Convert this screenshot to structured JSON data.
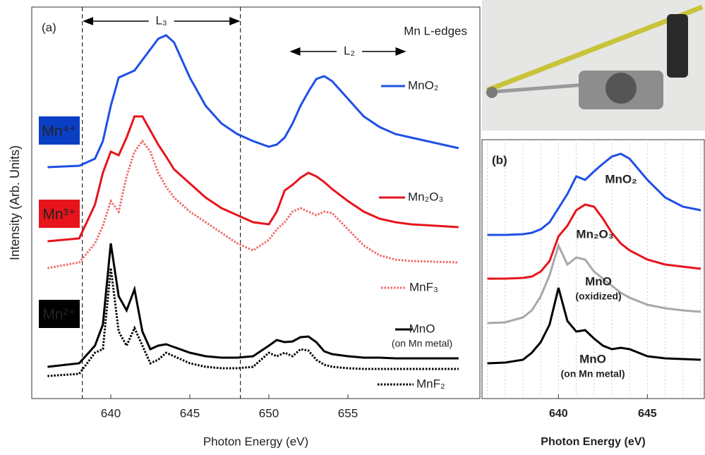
{
  "chart_data": [
    {
      "type": "line",
      "panel_label": "(a)",
      "annotation": "Mn L-edges",
      "edge_labels": [
        "L₃",
        "L₂"
      ],
      "x_label": "Photon Energy (eV)",
      "y_label": "Intensity (Arb. Units)",
      "xlim": [
        635,
        663.35
      ],
      "ylim": [
        0,
        555
      ],
      "xticks": [
        640,
        645,
        650,
        655
      ],
      "vlines": [
        638.2,
        648.2
      ],
      "state_labels": [
        {
          "text": "Mn⁴⁺",
          "color": "#0a3fc4"
        },
        {
          "text": "Mn³⁺",
          "color": "#e8141c"
        },
        {
          "text": "Mn²⁺",
          "color": "#000000"
        }
      ],
      "x": [
        636,
        638,
        639,
        639.5,
        640,
        640.5,
        641,
        641.5,
        642,
        642.5,
        643,
        643.5,
        644,
        645,
        646,
        647,
        648,
        649,
        650,
        650.5,
        651,
        651.5,
        652,
        652.5,
        653,
        653.5,
        654,
        655,
        656,
        657,
        658,
        659,
        662
      ],
      "series": [
        {
          "name": "MnO₂",
          "color": "#1f4fe6",
          "style": "solid",
          "values": [
            328,
            330,
            340,
            365,
            415,
            455,
            460,
            465,
            480,
            495,
            510,
            515,
            505,
            455,
            415,
            390,
            375,
            365,
            357,
            360,
            370,
            390,
            415,
            435,
            453,
            457,
            450,
            425,
            400,
            385,
            375,
            370,
            355
          ]
        },
        {
          "name": "Mn₂O₃",
          "color": "#e8141c",
          "style": "solid",
          "values": [
            223,
            227,
            275,
            320,
            350,
            345,
            370,
            400,
            400,
            380,
            360,
            343,
            325,
            305,
            285,
            270,
            260,
            250,
            247,
            265,
            295,
            303,
            313,
            320,
            315,
            307,
            297,
            280,
            265,
            255,
            250,
            247,
            243
          ]
        },
        {
          "name": "MnF₃",
          "color": "#f06a6a",
          "style": "dotted",
          "values": [
            185,
            193,
            220,
            245,
            280,
            265,
            315,
            350,
            365,
            350,
            320,
            300,
            285,
            265,
            250,
            235,
            220,
            210,
            225,
            240,
            250,
            265,
            270,
            265,
            260,
            265,
            263,
            240,
            217,
            203,
            197,
            195,
            193
          ]
        },
        {
          "name": "MnO",
          "sublabel": "(on Mn metal)",
          "color": "#000000",
          "style": "solid",
          "values": [
            45,
            50,
            75,
            105,
            220,
            145,
            125,
            155,
            95,
            70,
            75,
            77,
            73,
            65,
            60,
            58,
            58,
            60,
            75,
            83,
            80,
            81,
            87,
            88,
            80,
            67,
            63,
            60,
            58,
            58,
            57,
            57,
            57
          ]
        },
        {
          "name": "MnF₂",
          "color": "#000000",
          "style": "dotted",
          "values": [
            32,
            35,
            65,
            70,
            185,
            95,
            75,
            100,
            75,
            50,
            55,
            65,
            60,
            50,
            45,
            43,
            43,
            45,
            65,
            60,
            65,
            60,
            70,
            68,
            55,
            48,
            45,
            43,
            42,
            42,
            42,
            42,
            42
          ]
        }
      ]
    },
    {
      "type": "line",
      "panel_label": "(b)",
      "x_label": "Photon Energy (eV)",
      "xlim": [
        635.7,
        648.2
      ],
      "ylim": [
        0,
        367
      ],
      "xticks": [
        640,
        645
      ],
      "xgrid": [
        636,
        637,
        638,
        639,
        640,
        641,
        642,
        643,
        644,
        645,
        646,
        647,
        648
      ],
      "x": [
        636,
        637,
        638,
        638.5,
        639,
        639.5,
        640,
        640.5,
        641,
        641.5,
        642,
        642.5,
        643,
        643.5,
        644,
        645,
        646,
        647,
        648
      ],
      "series": [
        {
          "name": "MnO₂",
          "color": "#1f4fe6",
          "style": "solid",
          "values": [
            232,
            232,
            233,
            235,
            240,
            250,
            270,
            290,
            315,
            310,
            322,
            333,
            343,
            347,
            340,
            310,
            285,
            272,
            267
          ]
        },
        {
          "name": "Mn₂O₃",
          "color": "#e8141c",
          "style": "solid",
          "values": [
            170,
            170,
            171,
            173,
            180,
            195,
            230,
            245,
            267,
            275,
            272,
            255,
            235,
            220,
            210,
            197,
            190,
            187,
            184
          ]
        },
        {
          "name": "MnO",
          "sublabel": "(oxidized)",
          "color": "#a8a8a8",
          "style": "solid",
          "values": [
            107,
            108,
            115,
            125,
            145,
            175,
            217,
            190,
            200,
            197,
            180,
            170,
            160,
            150,
            143,
            133,
            128,
            125,
            123
          ]
        },
        {
          "name": "MnO",
          "sublabel": "(on Mn metal)",
          "color": "#000000",
          "style": "solid",
          "values": [
            50,
            51,
            55,
            65,
            80,
            105,
            157,
            110,
            95,
            97,
            85,
            75,
            70,
            72,
            70,
            60,
            57,
            56,
            55
          ]
        }
      ]
    }
  ]
}
